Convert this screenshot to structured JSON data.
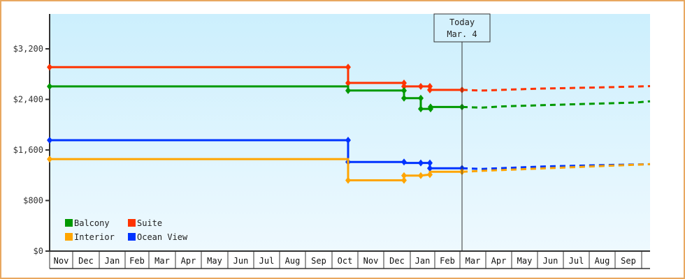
{
  "chart_data": {
    "type": "line",
    "title": "",
    "xlabel": "",
    "ylabel": "",
    "ylim": [
      0,
      3600
    ],
    "y_ticks": [
      {
        "value": 0,
        "label": "$0"
      },
      {
        "value": 800,
        "label": "$800"
      },
      {
        "value": 1600,
        "label": "$1,600"
      },
      {
        "value": 2400,
        "label": "$2,400"
      },
      {
        "value": 3200,
        "label": "$3,200"
      }
    ],
    "x_ticks": [
      "Nov",
      "Dec",
      "Jan",
      "Feb",
      "Mar",
      "Apr",
      "May",
      "Jun",
      "Jul",
      "Aug",
      "Sep",
      "Oct",
      "Nov",
      "Dec",
      "Jan",
      "Feb",
      "Mar",
      "Apr",
      "May",
      "Jun",
      "Jul",
      "Aug",
      "Sep"
    ],
    "x_tick_bounds": [
      71,
      104,
      142,
      179,
      213,
      251,
      288,
      326,
      363,
      400,
      437,
      475,
      512,
      549,
      587,
      622,
      658,
      695,
      732,
      769,
      806,
      843,
      880,
      918
    ],
    "today_marker": {
      "line1": "Today",
      "line2": "Mar. 4",
      "x": 661
    },
    "legend": [
      {
        "name": "Balcony",
        "color": "#009900"
      },
      {
        "name": "Suite",
        "color": "#FF3300"
      },
      {
        "name": "Interior",
        "color": "#FFA500"
      },
      {
        "name": "Ocean View",
        "color": "#0033FF"
      }
    ],
    "series": [
      {
        "name": "Suite",
        "color": "#FF3300",
        "history": [
          [
            71,
            2910
          ],
          [
            498,
            2910
          ],
          [
            498,
            2660
          ],
          [
            578,
            2660
          ],
          [
            578,
            2605
          ],
          [
            602,
            2605
          ],
          [
            615,
            2605
          ],
          [
            615,
            2550
          ],
          [
            661,
            2550
          ]
        ],
        "markers": [
          [
            71,
            2910
          ],
          [
            498,
            2910
          ],
          [
            498,
            2660
          ],
          [
            578,
            2660
          ],
          [
            578,
            2605
          ],
          [
            602,
            2605
          ],
          [
            615,
            2605
          ],
          [
            615,
            2550
          ],
          [
            661,
            2550
          ]
        ],
        "forecast": [
          [
            661,
            2550
          ],
          [
            690,
            2540
          ],
          [
            770,
            2570
          ],
          [
            860,
            2590
          ],
          [
            930,
            2610
          ]
        ]
      },
      {
        "name": "Balcony",
        "color": "#009900",
        "history": [
          [
            71,
            2605
          ],
          [
            498,
            2605
          ],
          [
            498,
            2540
          ],
          [
            578,
            2540
          ],
          [
            578,
            2420
          ],
          [
            602,
            2420
          ],
          [
            602,
            2250
          ],
          [
            616,
            2250
          ],
          [
            616,
            2280
          ],
          [
            661,
            2280
          ]
        ],
        "markers": [
          [
            71,
            2605
          ],
          [
            498,
            2540
          ],
          [
            578,
            2540
          ],
          [
            578,
            2420
          ],
          [
            602,
            2420
          ],
          [
            602,
            2250
          ],
          [
            616,
            2250
          ],
          [
            616,
            2280
          ],
          [
            661,
            2280
          ]
        ],
        "forecast": [
          [
            661,
            2280
          ],
          [
            690,
            2270
          ],
          [
            720,
            2290
          ],
          [
            810,
            2320
          ],
          [
            910,
            2350
          ],
          [
            930,
            2370
          ]
        ]
      },
      {
        "name": "Ocean View",
        "color": "#0033FF",
        "history": [
          [
            71,
            1755
          ],
          [
            498,
            1755
          ],
          [
            498,
            1410
          ],
          [
            578,
            1410
          ],
          [
            578,
            1395
          ],
          [
            602,
            1395
          ],
          [
            615,
            1395
          ],
          [
            615,
            1310
          ],
          [
            661,
            1310
          ]
        ],
        "markers": [
          [
            71,
            1755
          ],
          [
            498,
            1755
          ],
          [
            498,
            1410
          ],
          [
            578,
            1410
          ],
          [
            602,
            1395
          ],
          [
            615,
            1395
          ],
          [
            615,
            1310
          ],
          [
            661,
            1310
          ]
        ],
        "forecast": [
          [
            661,
            1310
          ],
          [
            690,
            1300
          ],
          [
            780,
            1340
          ],
          [
            860,
            1360
          ],
          [
            930,
            1375
          ]
        ]
      },
      {
        "name": "Interior",
        "color": "#FFA500",
        "history": [
          [
            71,
            1455
          ],
          [
            498,
            1455
          ],
          [
            498,
            1120
          ],
          [
            578,
            1120
          ],
          [
            578,
            1195
          ],
          [
            602,
            1195
          ],
          [
            615,
            1210
          ],
          [
            615,
            1255
          ],
          [
            661,
            1255
          ]
        ],
        "markers": [
          [
            71,
            1455
          ],
          [
            498,
            1120
          ],
          [
            578,
            1120
          ],
          [
            578,
            1195
          ],
          [
            602,
            1195
          ],
          [
            615,
            1210
          ],
          [
            661,
            1255
          ]
        ],
        "forecast": [
          [
            661,
            1255
          ],
          [
            690,
            1270
          ],
          [
            780,
            1310
          ],
          [
            860,
            1345
          ],
          [
            930,
            1375
          ]
        ]
      }
    ]
  }
}
